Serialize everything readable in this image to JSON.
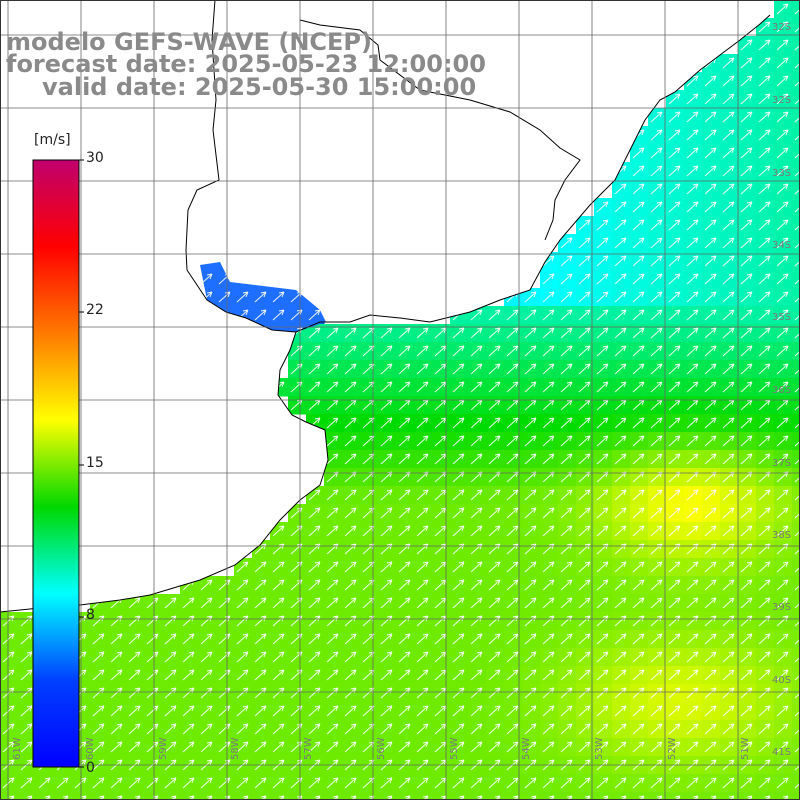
{
  "title": {
    "line1": "modelo GEFS-WAVE (NCEP)",
    "line2": "forecast date: 2025-05-23 12:00:00",
    "line3": "valid date: 2025-05-30 15:00:00"
  },
  "colorbar": {
    "unit": "[m/s]",
    "ticks": [
      "30",
      "22",
      "15",
      "8",
      "0"
    ],
    "colors": [
      "#c0006e",
      "#ff0000",
      "#ff7a00",
      "#ffff00",
      "#00d800",
      "#00ffff",
      "#0040ff",
      "#0000ff"
    ]
  },
  "lat_labels": [
    "32S",
    "33S",
    "34S",
    "35S",
    "36S",
    "37S",
    "38S",
    "39S",
    "40S",
    "41S"
  ],
  "lon_labels": [
    "61W",
    "60W",
    "59W",
    "58W",
    "57W",
    "56W",
    "55W",
    "54W",
    "53W",
    "52W",
    "51W"
  ],
  "colors": {
    "land": "#ffffff",
    "coast": "#000000",
    "grid": "#666666",
    "arrow": "#ffffff"
  }
}
